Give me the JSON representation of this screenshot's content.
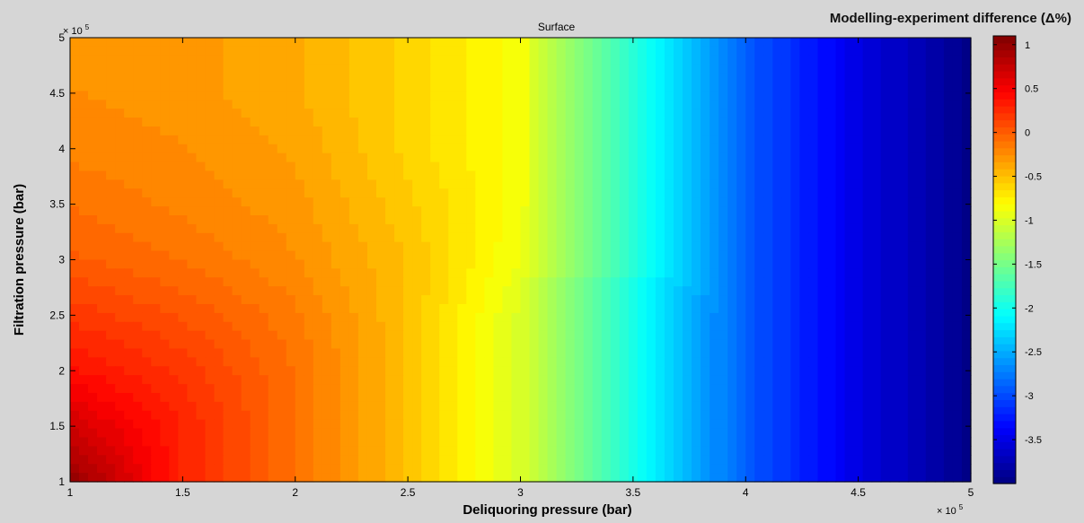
{
  "chart_data": {
    "type": "heatmap",
    "title": "Surface",
    "colorbar_title": "Modelling-experiment difference (Δ%)",
    "xlabel": "Deliquoring pressure (bar)",
    "ylabel": "Filtration pressure (bar)",
    "x_exponent_label": "× 10",
    "x_exponent_power": "5",
    "y_exponent_label": "× 10",
    "y_exponent_power": "5",
    "xlim": [
      1,
      5
    ],
    "ylim": [
      1,
      5
    ],
    "x_ticks": [
      1,
      1.5,
      2,
      2.5,
      3,
      3.5,
      4,
      4.5,
      5
    ],
    "x_tick_labels": [
      "1",
      "1.5",
      "2",
      "2.5",
      "3",
      "3.5",
      "4",
      "4.5",
      "5"
    ],
    "y_ticks": [
      1,
      1.5,
      2,
      2.5,
      3,
      3.5,
      4,
      4.5,
      5
    ],
    "y_tick_labels": [
      "1",
      "1.5",
      "2",
      "2.5",
      "3",
      "3.5",
      "4",
      "4.5",
      "5"
    ],
    "colorbar_range": [
      -4,
      1.1
    ],
    "colorbar_ticks": [
      1,
      0.5,
      0,
      -0.5,
      -1,
      -1.5,
      -2,
      -2.5,
      -3,
      -3.5
    ],
    "colorbar_tick_labels": [
      "1",
      "0.5",
      "0",
      "-0.5",
      "-1",
      "-1.5",
      "-2",
      "-2.5",
      "-3",
      "-3.5"
    ],
    "colormap": "jet",
    "surface": {
      "x": [
        1,
        1.5,
        2,
        2.5,
        3,
        3.5,
        4,
        4.5,
        5
      ],
      "y": [
        1,
        1.5,
        2,
        2.5,
        3,
        3.5,
        4,
        4.5,
        5
      ],
      "z": [
        [
          1.0,
          0.3,
          -0.1,
          -0.5,
          -1.0,
          -2.0,
          -2.9,
          -3.5,
          -3.95
        ],
        [
          0.7,
          0.3,
          -0.1,
          -0.5,
          -1.0,
          -2.0,
          -2.9,
          -3.5,
          -3.95
        ],
        [
          0.4,
          0.2,
          -0.1,
          -0.5,
          -1.0,
          -2.0,
          -2.9,
          -3.5,
          -3.95
        ],
        [
          0.2,
          0.05,
          -0.15,
          -0.5,
          -1.0,
          -2.0,
          -2.9,
          -3.5,
          -3.95
        ],
        [
          0.0,
          -0.1,
          -0.25,
          -0.5,
          -0.9,
          -1.9,
          -2.9,
          -3.5,
          -3.95
        ],
        [
          -0.1,
          -0.2,
          -0.3,
          -0.55,
          -0.85,
          -1.9,
          -2.9,
          -3.5,
          -3.95
        ],
        [
          -0.2,
          -0.25,
          -0.35,
          -0.6,
          -0.85,
          -1.9,
          -2.9,
          -3.5,
          -3.95
        ],
        [
          -0.25,
          -0.3,
          -0.4,
          -0.6,
          -0.85,
          -1.9,
          -2.9,
          -3.5,
          -3.95
        ],
        [
          -0.3,
          -0.3,
          -0.4,
          -0.6,
          -0.85,
          -1.9,
          -2.9,
          -3.5,
          -3.95
        ]
      ]
    }
  }
}
